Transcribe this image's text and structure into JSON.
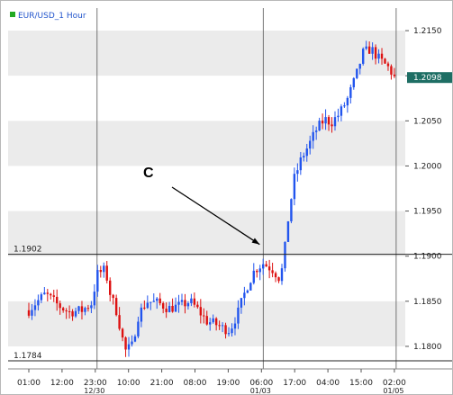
{
  "chart_data": {
    "type": "candlestick",
    "title": "EUR/USD_1 Hour",
    "title_marker_color": "#22aa22",
    "up_color": "#2255ee",
    "down_color": "#dd1111",
    "band_color": "#ebebeb",
    "ylim": [
      1.1775,
      1.2175
    ],
    "yticks": [
      {
        "value": 1.215,
        "label": "1.2150"
      },
      {
        "value": 1.21,
        "label": "1.2100"
      },
      {
        "value": 1.205,
        "label": "1.2050"
      },
      {
        "value": 1.2,
        "label": "1.2000"
      },
      {
        "value": 1.195,
        "label": "1.1950"
      },
      {
        "value": 1.19,
        "label": "1.1900"
      },
      {
        "value": 1.185,
        "label": "1.1850"
      },
      {
        "value": 1.18,
        "label": "1.1800"
      }
    ],
    "xticks": [
      {
        "label": "01:00",
        "sub": ""
      },
      {
        "label": "12:00",
        "sub": ""
      },
      {
        "label": "23:00",
        "sub": "12/30"
      },
      {
        "label": "10:00",
        "sub": ""
      },
      {
        "label": "21:00",
        "sub": ""
      },
      {
        "label": "08:00",
        "sub": ""
      },
      {
        "label": "19:00",
        "sub": ""
      },
      {
        "label": "06:00",
        "sub": "01/03"
      },
      {
        "label": "17:00",
        "sub": ""
      },
      {
        "label": "04:00",
        "sub": ""
      },
      {
        "label": "15:00",
        "sub": ""
      },
      {
        "label": "02:00",
        "sub": "01/05"
      }
    ],
    "period_separators_after_tick": [
      2,
      7,
      11
    ],
    "horizontal_levels": [
      {
        "value": 1.1902,
        "label": "1.1902"
      },
      {
        "value": 1.1784,
        "label": "1.1784"
      }
    ],
    "current_price": {
      "value": 1.2098,
      "label": "1.2098",
      "color": "#1e6e64"
    },
    "annotation": {
      "label": "C",
      "arrow_to_time_tick": 7,
      "arrow_to_value": 1.1915
    },
    "path_points": [
      [
        0,
        1.184
      ],
      [
        0.2,
        1.1848
      ],
      [
        0.5,
        1.1858
      ],
      [
        0.9,
        1.1845
      ],
      [
        1.2,
        1.1838
      ],
      [
        1.6,
        1.184
      ],
      [
        1.9,
        1.1848
      ],
      [
        2.05,
        1.188
      ],
      [
        2.3,
        1.1885
      ],
      [
        2.45,
        1.1858
      ],
      [
        2.65,
        1.1838
      ],
      [
        2.78,
        1.1815
      ],
      [
        2.9,
        1.1795
      ],
      [
        3.1,
        1.18
      ],
      [
        3.3,
        1.1835
      ],
      [
        3.55,
        1.185
      ],
      [
        3.9,
        1.1848
      ],
      [
        4.2,
        1.1842
      ],
      [
        4.55,
        1.1845
      ],
      [
        4.85,
        1.185
      ],
      [
        5.1,
        1.184
      ],
      [
        5.35,
        1.1828
      ],
      [
        5.6,
        1.1825
      ],
      [
        5.85,
        1.182
      ],
      [
        6.05,
        1.1818
      ],
      [
        6.3,
        1.1838
      ],
      [
        6.55,
        1.1865
      ],
      [
        6.8,
        1.1885
      ],
      [
        7.05,
        1.1892
      ],
      [
        7.35,
        1.1885
      ],
      [
        7.55,
        1.1875
      ],
      [
        7.65,
        1.189
      ],
      [
        7.8,
        1.194
      ],
      [
        7.98,
        1.1985
      ],
      [
        8.2,
        1.2008
      ],
      [
        8.45,
        1.2025
      ],
      [
        8.65,
        1.204
      ],
      [
        8.9,
        1.2052
      ],
      [
        9.1,
        1.2048
      ],
      [
        9.35,
        1.2058
      ],
      [
        9.6,
        1.2075
      ],
      [
        9.85,
        1.21
      ],
      [
        10.05,
        1.2125
      ],
      [
        10.3,
        1.213
      ],
      [
        10.55,
        1.2118
      ],
      [
        10.85,
        1.2108
      ],
      [
        11.0,
        1.2098
      ]
    ]
  }
}
